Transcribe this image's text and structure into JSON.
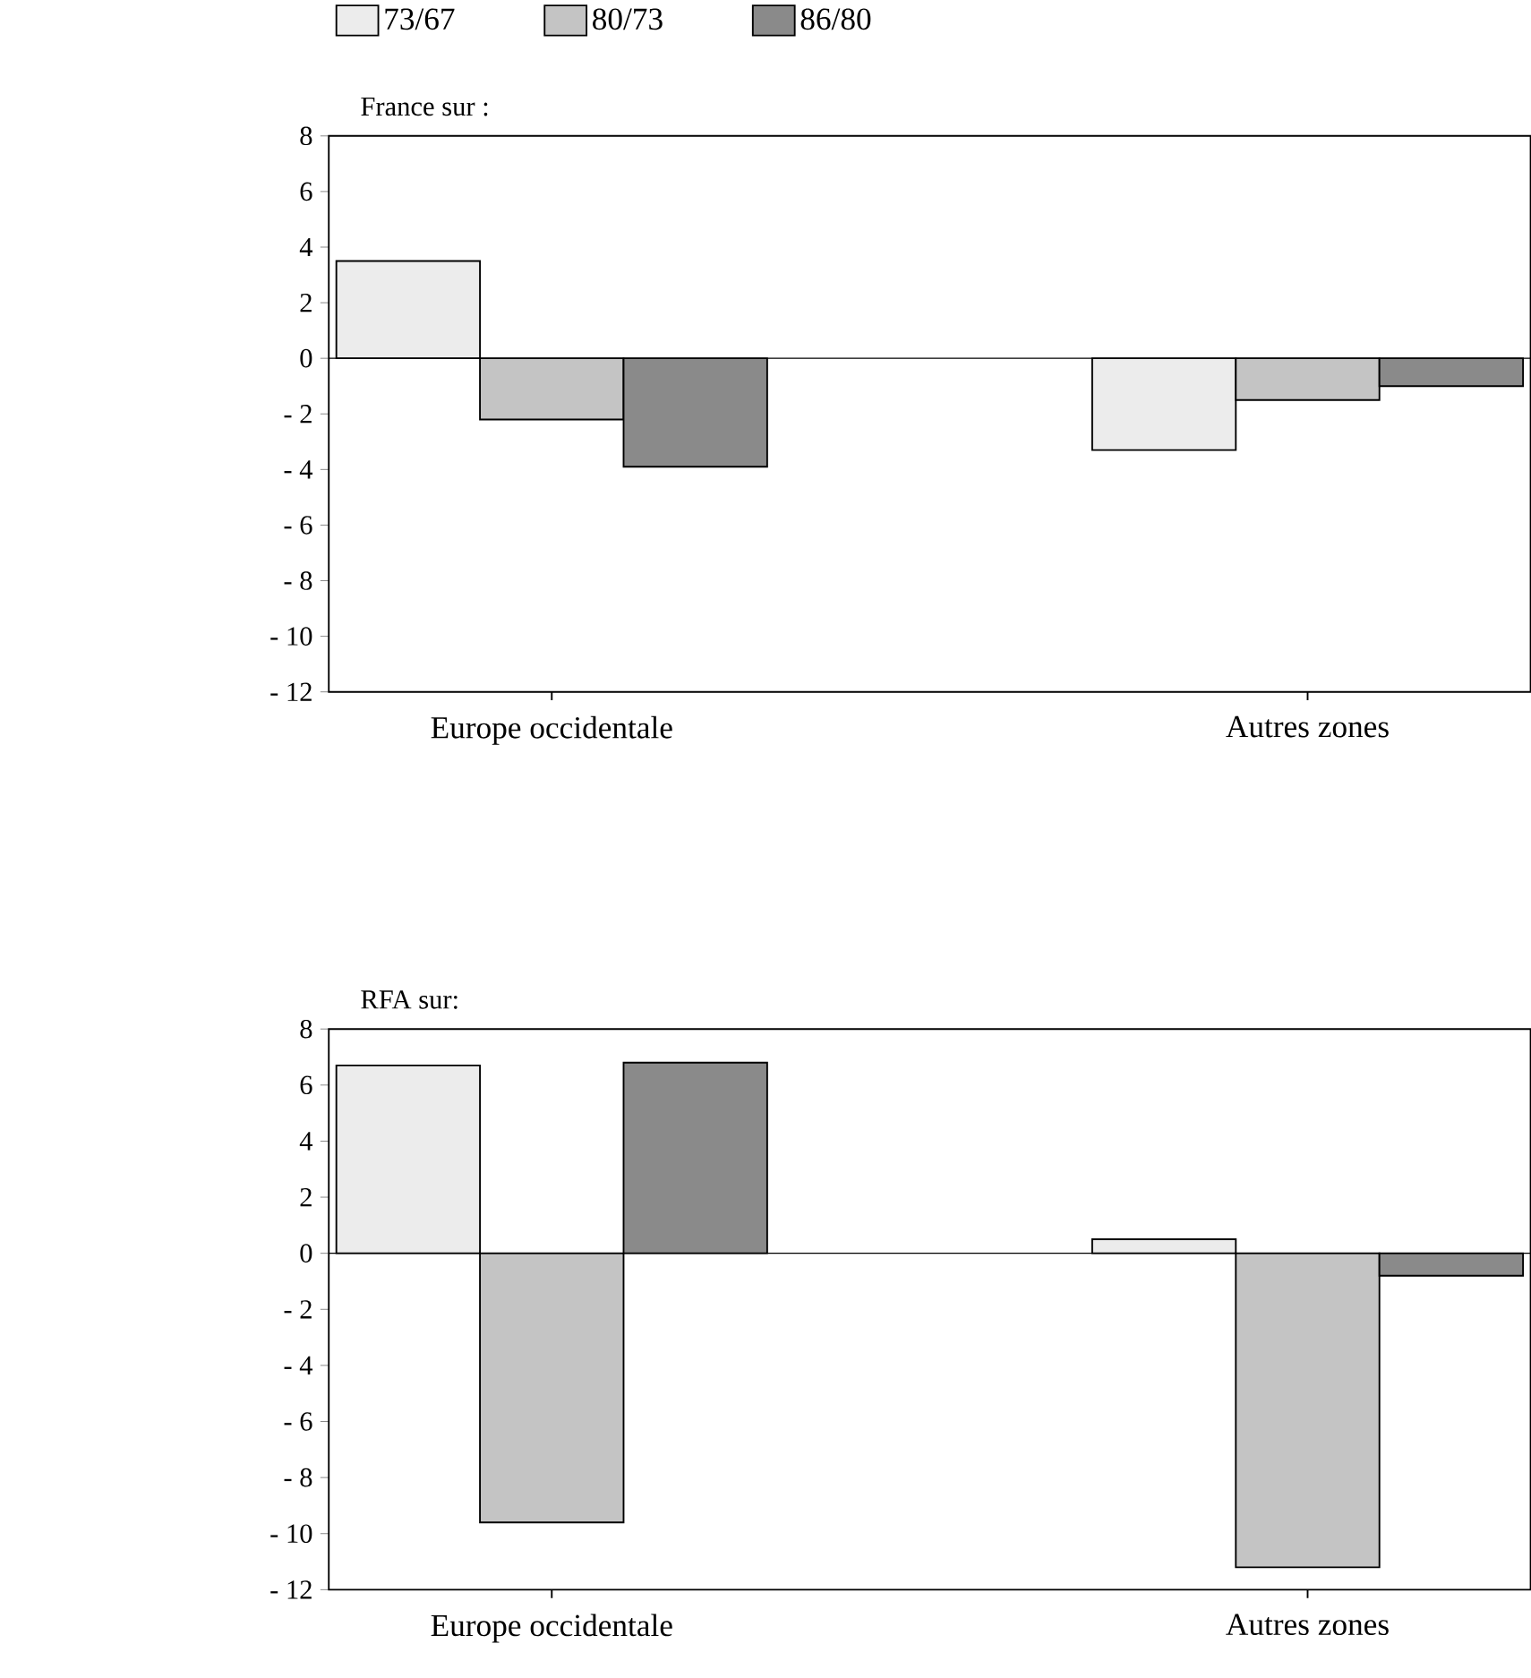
{
  "chart_data": [
    {
      "type": "bar",
      "title": "France sur :",
      "categories": [
        "Europe occidentale",
        "Autres zones"
      ],
      "series": [
        {
          "name": "73/67",
          "color": "#ececec",
          "values": [
            3.5,
            -3.3
          ]
        },
        {
          "name": "80/73",
          "color": "#c4c4c4",
          "values": [
            -2.2,
            -1.5
          ]
        },
        {
          "name": "86/80",
          "color": "#8a8a8a",
          "values": [
            -3.9,
            -1.0
          ]
        }
      ],
      "ylim": [
        -12,
        8
      ],
      "yticks": [
        {
          "value": -12,
          "label": "- 12"
        },
        {
          "value": -10,
          "label": "- 10"
        },
        {
          "value": -8,
          "label": "- 8"
        },
        {
          "value": -6,
          "label": "- 6"
        },
        {
          "value": -4,
          "label": "- 4"
        },
        {
          "value": -2,
          "label": "- 2"
        },
        0,
        2,
        4,
        6,
        8
      ],
      "ref_lines": [
        {
          "axis": "y",
          "value": 0
        }
      ],
      "legend": "top left"
    },
    {
      "type": "bar",
      "title": "RFA sur:",
      "categories": [
        "Europe occidentale",
        "Autres zones"
      ],
      "series": [
        {
          "color": "#ececec",
          "values": [
            6.7,
            0.5
          ]
        },
        {
          "color": "#c4c4c4",
          "values": [
            -9.6,
            -11.2
          ]
        },
        {
          "color": "#8a8a8a",
          "values": [
            6.8,
            -0.8
          ]
        }
      ],
      "ylim": [
        -12,
        8
      ],
      "yticks": [
        {
          "value": -12,
          "label": "- 12"
        },
        {
          "value": -10,
          "label": "- 10"
        },
        {
          "value": -8,
          "label": "- 8"
        },
        {
          "value": -6,
          "label": "- 6"
        },
        {
          "value": -4,
          "label": "- 4"
        },
        {
          "value": -2,
          "label": "- 2"
        },
        0,
        2,
        4,
        6,
        8
      ],
      "ref_lines": [
        {
          "axis": "y",
          "value": 0
        }
      ]
    }
  ]
}
